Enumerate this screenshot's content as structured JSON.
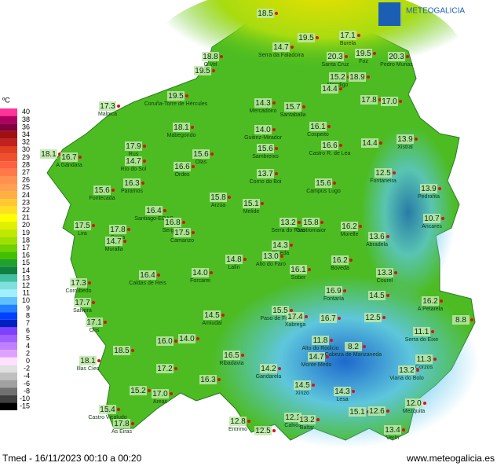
{
  "header": {
    "brand": "METEOGALICIA"
  },
  "legend": {
    "unit": "ºC",
    "scale": [
      {
        "value": 40,
        "color": "#ff3399"
      },
      {
        "value": 38,
        "color": "#b00060"
      },
      {
        "value": 36,
        "color": "#800040"
      },
      {
        "value": 34,
        "color": "#a01010"
      },
      {
        "value": 32,
        "color": "#c02020"
      },
      {
        "value": 30,
        "color": "#e04020"
      },
      {
        "value": 29,
        "color": "#f05030"
      },
      {
        "value": 28,
        "color": "#ff6040"
      },
      {
        "value": 27,
        "color": "#ff7848"
      },
      {
        "value": 26,
        "color": "#ff9050"
      },
      {
        "value": 25,
        "color": "#ffa050"
      },
      {
        "value": 24,
        "color": "#ffb040"
      },
      {
        "value": 23,
        "color": "#ffc830"
      },
      {
        "value": 22,
        "color": "#ffe020"
      },
      {
        "value": 21,
        "color": "#ffff00"
      },
      {
        "value": 20,
        "color": "#e0f000"
      },
      {
        "value": 19,
        "color": "#c0e800"
      },
      {
        "value": 18,
        "color": "#a0e000"
      },
      {
        "value": 17,
        "color": "#70d000"
      },
      {
        "value": 16,
        "color": "#40c000"
      },
      {
        "value": 15,
        "color": "#20a030"
      },
      {
        "value": 14,
        "color": "#108040"
      },
      {
        "value": 13,
        "color": "#40c0a0"
      },
      {
        "value": 12,
        "color": "#80e0e0"
      },
      {
        "value": 11,
        "color": "#a0f0ff"
      },
      {
        "value": 10,
        "color": "#60c0ff"
      },
      {
        "value": 9,
        "color": "#2080ff"
      },
      {
        "value": 8,
        "color": "#0040ff"
      },
      {
        "value": 7,
        "color": "#0020c0"
      },
      {
        "value": 6,
        "color": "#8040ff"
      },
      {
        "value": 5,
        "color": "#a060ff"
      },
      {
        "value": 4,
        "color": "#c080ff"
      },
      {
        "value": 2,
        "color": "#e0a0ff"
      },
      {
        "value": 0,
        "color": "#ffe0ff"
      },
      {
        "value": -2,
        "color": "#e0e0e0"
      },
      {
        "value": -4,
        "color": "#c0c0c0"
      },
      {
        "value": -6,
        "color": "#a0a0a0"
      },
      {
        "value": -8,
        "color": "#707070"
      },
      {
        "value": -10,
        "color": "#404040"
      },
      {
        "value": -15,
        "color": "#000000"
      }
    ]
  },
  "stations": [
    {
      "value": 18.5
    },
    {
      "value": 17.1,
      "name": "Burela"
    },
    {
      "value": 19.5
    },
    {
      "value": 14.7,
      "name": "Serra da Faladoira"
    },
    {
      "value": 20.3,
      "name": "Santa Cruz"
    },
    {
      "value": 19.5,
      "name": "Foz"
    },
    {
      "value": 20.3,
      "name": "Pedro Murias"
    },
    {
      "value": 18.8,
      "name": "O Vel"
    },
    {
      "value": 19.5
    },
    {
      "value": 15.2,
      "name": "Mondigo"
    },
    {
      "value": 18.9
    },
    {
      "value": 14.4
    },
    {
      "value": 19.5,
      "name": "Coruña-Torre de Hércules"
    },
    {
      "value": 17.3,
      "name": "Malpica"
    },
    {
      "value": 14.3,
      "name": "Mercadoiro"
    },
    {
      "value": 15.7,
      "name": "Santaballa"
    },
    {
      "value": 17.8
    },
    {
      "value": 17.0,
      "value_label": "17.0"
    },
    {
      "value": 18.1,
      "name": "Mabegondo"
    },
    {
      "value": 14.0,
      "value_label": "14.0",
      "name": "Guitiriz-Mirador"
    },
    {
      "value": 16.1,
      "name": "Cospeito"
    },
    {
      "value": 13.9,
      "name": "Xistral"
    },
    {
      "value": 17.9,
      "name": "Rus"
    },
    {
      "value": 16.6,
      "name": "Castro R. de Lea"
    },
    {
      "value": 14.4
    },
    {
      "value": 15.6,
      "name": "Sambreixo"
    },
    {
      "value": 18.1
    },
    {
      "value": 16.7,
      "name": "A Gándara"
    },
    {
      "value": 14.7,
      "name": "Río do Sol"
    },
    {
      "value": 15.6,
      "name": "Olas"
    },
    {
      "value": 16.6,
      "name": "Ordes"
    },
    {
      "value": 13.7,
      "name": "Corno do Boi"
    },
    {
      "value": 12.5,
      "name": "Fontaneira"
    },
    {
      "value": 16.3,
      "name": "Paramos"
    },
    {
      "value": 15.6,
      "name": "Campus Lugo"
    },
    {
      "value": 13.9,
      "name": "Pedrafita"
    },
    {
      "value": 15.6,
      "name": "Fontecada"
    },
    {
      "value": 15.8,
      "name": "Arzúa"
    },
    {
      "value": 15.1,
      "name": "Melide"
    },
    {
      "value": 16.4,
      "name": "Santiago-EOAS"
    },
    {
      "value": 16.8,
      "name": "Sergude"
    },
    {
      "value": 13.2,
      "name": "Serra do Faro"
    },
    {
      "value": 15.8,
      "name": "Castromaior"
    },
    {
      "value": 16.2,
      "name": "Morelle"
    },
    {
      "value": 10.7,
      "name": "Ancares"
    },
    {
      "value": 17.5,
      "name": "Lira"
    },
    {
      "value": 17.8,
      "name": "Costa"
    },
    {
      "value": 17.5,
      "name": "Camanzo"
    },
    {
      "value": 13.6,
      "name": "Abradela"
    },
    {
      "value": 14.7,
      "name": "Muralla"
    },
    {
      "value": 14.3,
      "name": "Olveda"
    },
    {
      "value": 13.0,
      "value_label": "13.0",
      "name": "Alto do Faro"
    },
    {
      "value": 14.8,
      "name": "Lalín"
    },
    {
      "value": 16.2,
      "name": "Boveda"
    },
    {
      "value": 14.0,
      "value_label": "14.0",
      "name": "Forcarei"
    },
    {
      "value": 16.4,
      "name": "Caldas de Reis"
    },
    {
      "value": 16.1,
      "name": "Sober"
    },
    {
      "value": 13.3,
      "name": "Courel"
    },
    {
      "value": 17.3,
      "name": "Corrubedo"
    },
    {
      "value": 15.5,
      "name": "Paso de Fontela"
    },
    {
      "value": 16.9,
      "name": "Fontaría"
    },
    {
      "value": 14.5
    },
    {
      "value": 14.5,
      "name": "Amiudal"
    },
    {
      "value": 17.4,
      "name": "Xabrega"
    },
    {
      "value": 16.7
    },
    {
      "value": 12.5
    },
    {
      "value": 16.2,
      "name": "A Petarela"
    },
    {
      "value": 8.8
    },
    {
      "value": 11.8,
      "name": "Alto do Rodicio"
    },
    {
      "value": 8.2,
      "name": "Cabeza de Manzaneda"
    },
    {
      "value": 11.1,
      "name": "Serra do Eixe"
    },
    {
      "value": 14.7,
      "name": "Monte Medo"
    },
    {
      "value": 11.3,
      "name": "Corzos"
    },
    {
      "value": 13.2,
      "name": "Viana do Bolo"
    },
    {
      "value": 14.2,
      "name": "Gandarela"
    },
    {
      "value": 14.5,
      "name": "Xinzo"
    },
    {
      "value": 14.3,
      "name": "Lesa"
    },
    {
      "value": 12.0,
      "value_label": "12.0",
      "name": "Mezquita"
    },
    {
      "value": 15.1
    },
    {
      "value": 12.6
    },
    {
      "value": 12.1,
      "name": "Calvos"
    },
    {
      "value": 13.2,
      "name": "Baltar"
    },
    {
      "value": 12.8,
      "name": "Entrimo"
    },
    {
      "value": 12.5
    },
    {
      "value": 13.4,
      "name": "Verín"
    },
    {
      "value": 15.4,
      "name": "Castro Vicaludo"
    },
    {
      "value": 17.8,
      "name": "As Eiras"
    },
    {
      "value": 15.2
    },
    {
      "value": 17.0,
      "value_label": "17.0",
      "name": "Areas"
    },
    {
      "value": 16.3
    },
    {
      "value": 17.2
    },
    {
      "value": 18.1,
      "name": "Illas Cíes"
    },
    {
      "value": 18.5
    },
    {
      "value": 14.0,
      "value_label": "14.0"
    },
    {
      "value": 16.0,
      "value_label": "16.0"
    },
    {
      "value": 17.1,
      "name": "Ons"
    },
    {
      "value": 17.7,
      "name": "Salvora"
    },
    {
      "value": 16.5,
      "name": "Ribadavia"
    }
  ],
  "footer": {
    "left": "Tmed - 16/11/2023 00:10 a 00:20",
    "right": "www.meteogalicia.es"
  }
}
